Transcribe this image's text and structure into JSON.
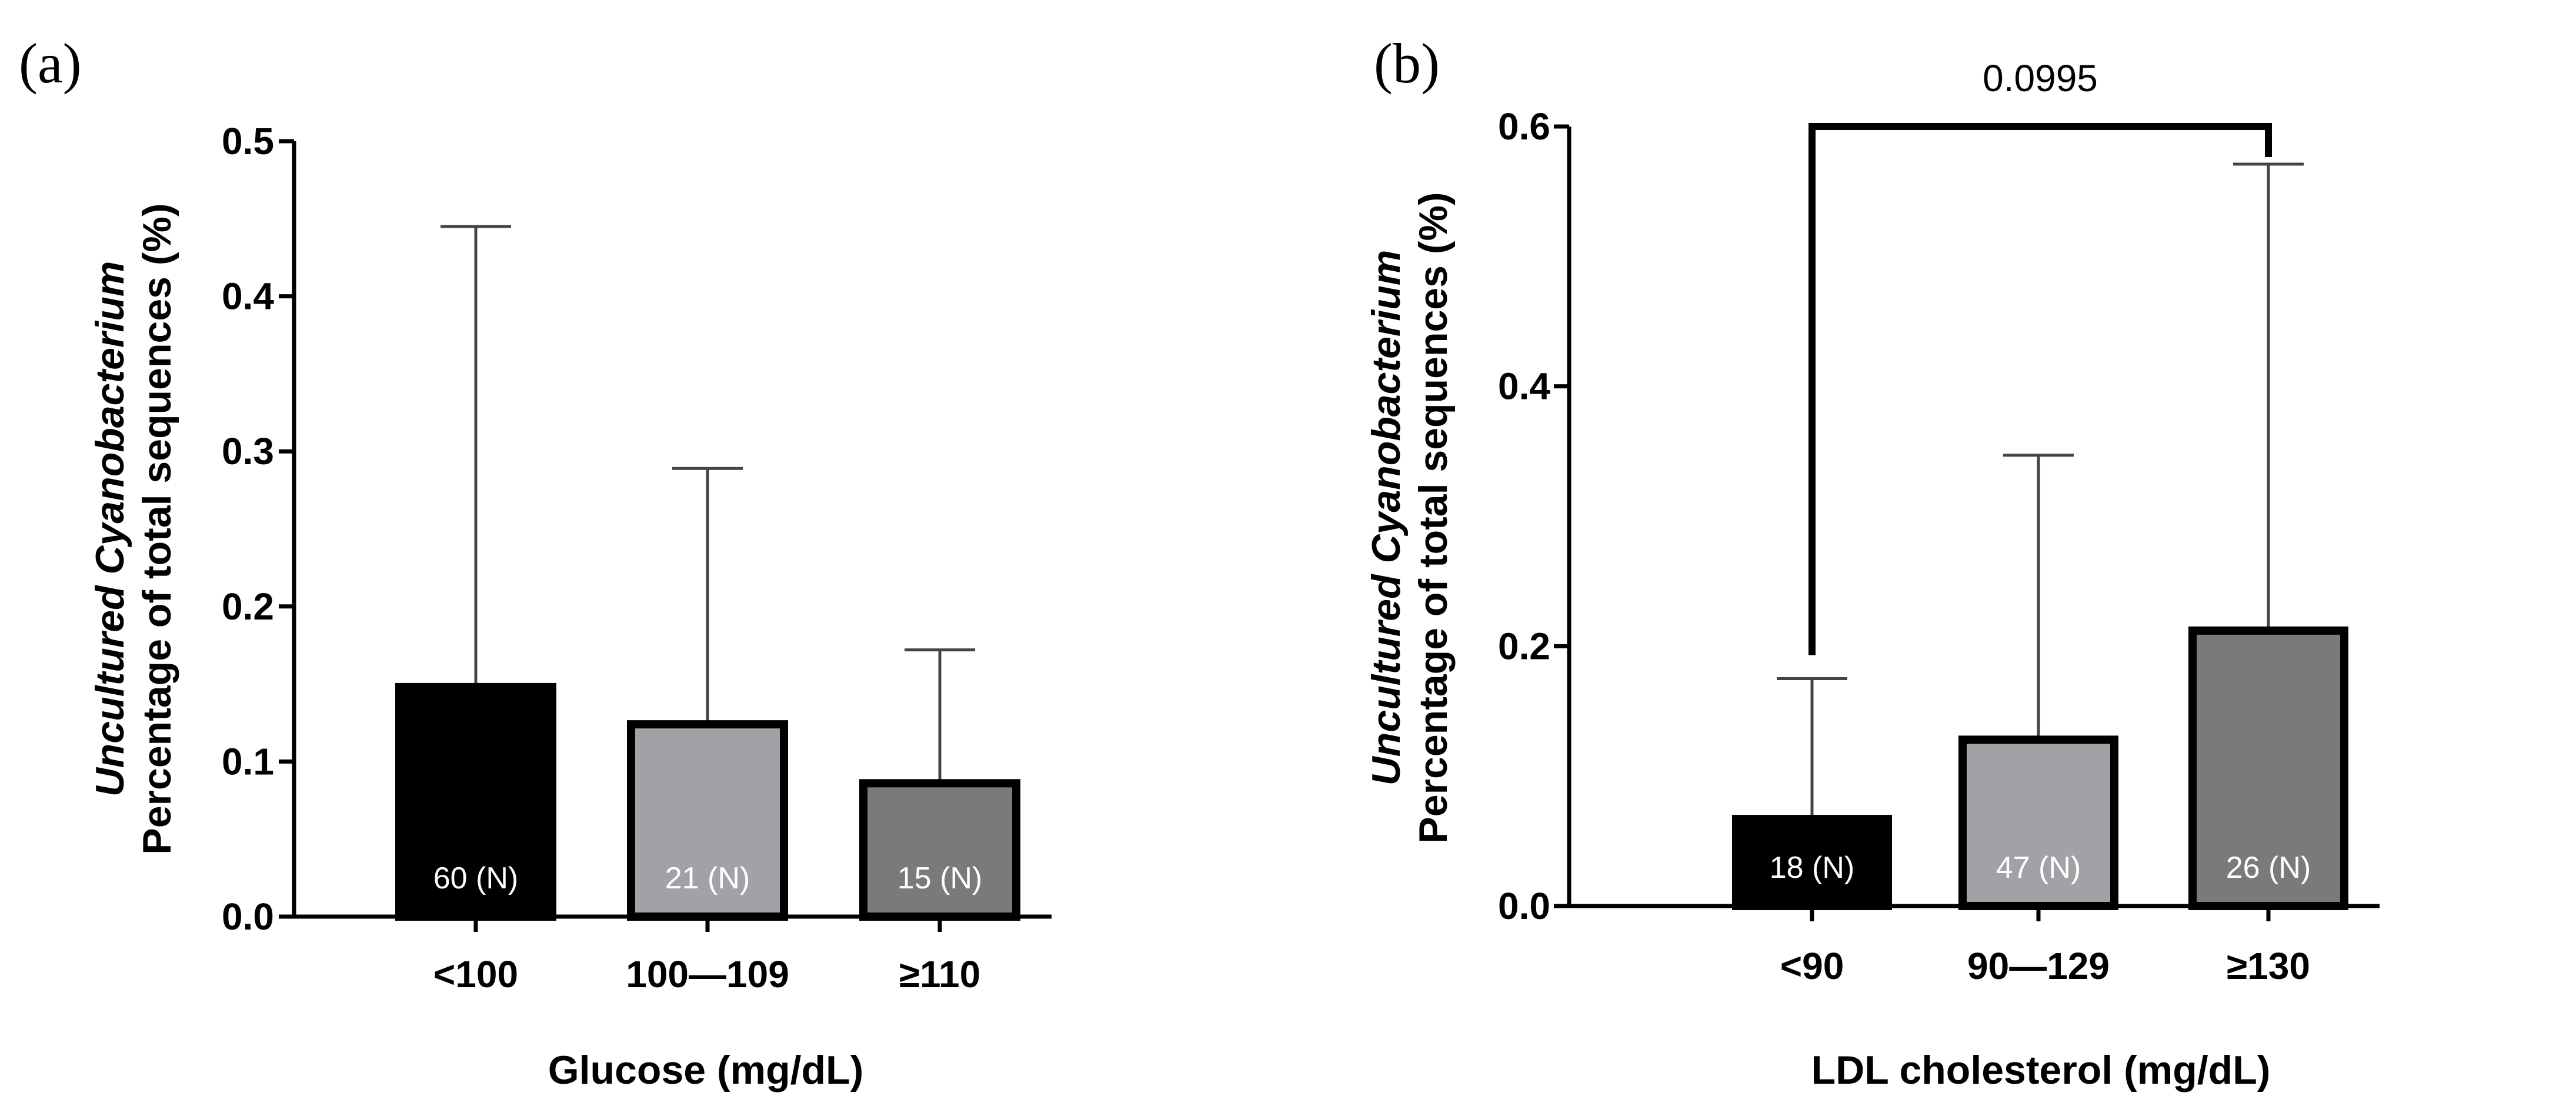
{
  "figure": {
    "background": "#ffffff",
    "axis_color": "#000000",
    "errorbar_color": "#444444",
    "bar_edge_color": "#000000",
    "count_label_color": "#ffffff"
  },
  "chart_data": [
    {
      "panel_label": "(a)",
      "type": "bar",
      "title": "",
      "xlabel": "Glucose (mg/dL)",
      "ylabel_italic": "Uncultured Cyanobacterium",
      "ylabel": "Percentage of total sequences (%)",
      "ylim": [
        0,
        0.5
      ],
      "yticks": [
        0.0,
        0.1,
        0.2,
        0.3,
        0.4,
        0.5
      ],
      "ytick_labels": [
        "0.0",
        "0.1",
        "0.2",
        "0.3",
        "0.4",
        "0.5"
      ],
      "categories": [
        "<100",
        "100—109",
        "≥110"
      ],
      "values": [
        0.148,
        0.124,
        0.086
      ],
      "error_upper": [
        0.445,
        0.289,
        0.172
      ],
      "bar_colors": [
        "#000000",
        "#a2a2a6",
        "#7a7a7a"
      ],
      "count_labels": [
        "60 (N)",
        "21 (N)",
        "15 (N)"
      ],
      "annotations": []
    },
    {
      "panel_label": "(b)",
      "type": "bar",
      "title": "",
      "xlabel": "LDL cholesterol (mg/dL)",
      "ylabel_italic": "Uncultured Cyanobacterium",
      "ylabel": "Percentage of total sequences (%)",
      "ylim": [
        0,
        0.6
      ],
      "yticks": [
        0.0,
        0.2,
        0.4,
        0.6
      ],
      "ytick_labels": [
        "0.0",
        "0.2",
        "0.4",
        "0.6"
      ],
      "categories": [
        "<90",
        "90—129",
        "≥130"
      ],
      "values": [
        0.067,
        0.128,
        0.212
      ],
      "error_upper": [
        0.175,
        0.347,
        0.571
      ],
      "bar_colors": [
        "#000000",
        "#a2a2a6",
        "#7a7a7a"
      ],
      "count_labels": [
        "18 (N)",
        "47 (N)",
        "26 (N)"
      ],
      "annotations": [
        {
          "type": "bracket",
          "from_category": 0,
          "to_category": 2,
          "y": 0.6,
          "text": "0.0995"
        }
      ]
    }
  ]
}
